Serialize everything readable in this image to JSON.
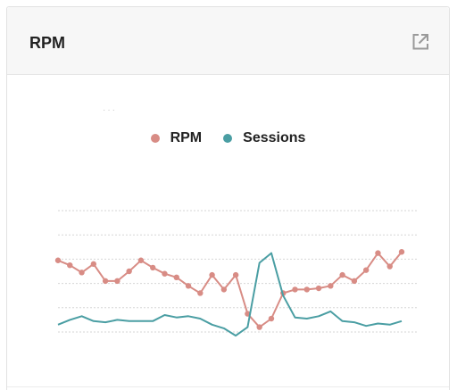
{
  "card": {
    "title": "RPM",
    "icons": {
      "expand": "external-link-icon"
    }
  },
  "colors": {
    "rpm": "#d88c85",
    "sessions": "#4a9ea3",
    "grid": "#d6d6d6",
    "title": "#222222"
  },
  "chart_data": {
    "type": "line",
    "title": "",
    "xlabel": "",
    "ylabel": "",
    "grid": true,
    "legend_position": "top-center",
    "ylim": [
      0,
      5
    ],
    "x": [
      1,
      2,
      3,
      4,
      5,
      6,
      7,
      8,
      9,
      10,
      11,
      12,
      13,
      14,
      15,
      16,
      17,
      18,
      19,
      20,
      21,
      22,
      23,
      24,
      25,
      26,
      27,
      28,
      29,
      30
    ],
    "series": [
      {
        "name": "RPM",
        "values": [
          2.95,
          2.75,
          2.45,
          2.8,
          2.1,
          2.1,
          2.5,
          2.95,
          2.65,
          2.4,
          2.25,
          1.9,
          1.6,
          2.35,
          1.75,
          2.35,
          0.75,
          0.2,
          0.55,
          1.6,
          1.75,
          1.75,
          1.8,
          1.9,
          2.35,
          2.1,
          2.55,
          3.25,
          2.7,
          3.3
        ]
      },
      {
        "name": "Sessions",
        "values": [
          0.3,
          0.5,
          0.65,
          0.45,
          0.4,
          0.5,
          0.45,
          0.45,
          0.45,
          0.7,
          0.6,
          0.65,
          0.55,
          0.3,
          0.15,
          -0.15,
          0.2,
          2.85,
          3.25,
          1.5,
          0.6,
          0.55,
          0.65,
          0.85,
          0.45,
          0.4,
          0.25,
          0.35,
          0.3,
          0.45
        ]
      }
    ]
  }
}
